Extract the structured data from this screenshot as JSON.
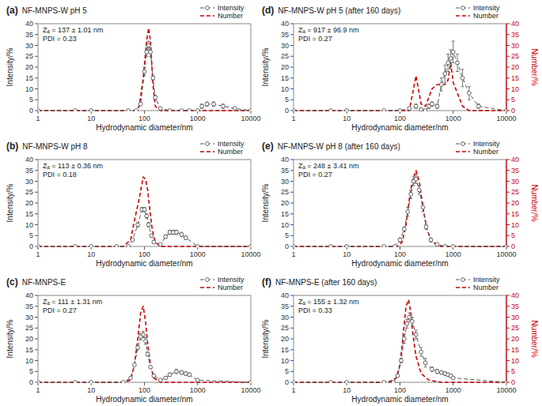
{
  "chart_data": [
    {
      "type": "line",
      "title": "NF-MNPS-W pH 5",
      "annotations": [
        "(a)",
        "Zₐ = 137 ± 1.01 nm",
        "PDI = 0.23"
      ],
      "xlabel": "Hydrodynamic diameter/nm",
      "ylabel": "Intensity/%",
      "log": "x",
      "grid": false,
      "legend": "top",
      "xlim": [
        1,
        10000
      ],
      "xticks": [
        1,
        10,
        100,
        1000,
        10000
      ],
      "ylim": [
        0,
        40
      ],
      "yticks": [
        0,
        5,
        10,
        15,
        20,
        25,
        30,
        35,
        40
      ],
      "series": [
        {
          "name": "Intensity",
          "color": "#555555",
          "marker": "circle",
          "line_style": "dashed",
          "x": [
            1,
            5,
            10,
            50,
            70,
            85,
            100,
            110,
            120,
            130,
            145,
            160,
            200,
            300,
            500,
            700,
            1000,
            1200,
            1500,
            2000,
            3000,
            5000,
            10000
          ],
          "values": [
            0,
            0,
            0,
            0,
            0,
            3,
            18,
            27,
            30,
            27,
            15,
            6,
            1,
            0,
            0,
            0,
            0,
            2,
            3,
            3,
            2,
            1,
            0
          ],
          "yerr": [
            0,
            0,
            0,
            0,
            0,
            0,
            2,
            2,
            2,
            2,
            1,
            1,
            0,
            0,
            0,
            0,
            0,
            1,
            1,
            1,
            1,
            0.5,
            0
          ]
        },
        {
          "name": "Number",
          "color": "#cc0000",
          "line_style": "dashed",
          "x": [
            1,
            5,
            10,
            50,
            70,
            80,
            95,
            110,
            120,
            130,
            145,
            160,
            200,
            300,
            500,
            1000,
            10000
          ],
          "values": [
            0,
            0,
            0,
            0,
            0,
            2,
            15,
            32,
            38,
            32,
            12,
            2,
            0,
            0,
            0,
            0,
            0
          ]
        }
      ]
    },
    {
      "type": "line",
      "title": "NF-MNPS-W pH 8",
      "annotations": [
        "(b)",
        "Zₐ = 113 ± 0.36 nm",
        "PDI = 0.18"
      ],
      "xlabel": "Hydrodynamic diameter/nm",
      "ylabel": "Intensity/%",
      "log": "x",
      "grid": false,
      "legend": "top",
      "xlim": [
        1,
        10000
      ],
      "xticks": [
        1,
        10,
        100,
        1000,
        10000
      ],
      "ylim": [
        0,
        40
      ],
      "yticks": [
        0,
        5,
        10,
        15,
        20,
        25,
        30,
        35,
        40
      ],
      "series": [
        {
          "name": "Intensity",
          "color": "#555555",
          "marker": "circle",
          "line_style": "dashed",
          "x": [
            1,
            5,
            10,
            30,
            50,
            60,
            75,
            90,
            100,
            110,
            120,
            135,
            150,
            200,
            250,
            300,
            350,
            400,
            500,
            600,
            1000,
            10000
          ],
          "values": [
            0,
            0,
            0,
            0,
            0,
            3,
            10,
            17,
            17,
            14,
            10,
            5,
            2,
            1,
            4.5,
            6.5,
            6.5,
            6.5,
            5.5,
            4,
            0,
            0
          ],
          "yerr": [
            0,
            0,
            0,
            0,
            0,
            0,
            1,
            1,
            1,
            1,
            1,
            0.5,
            0.5,
            0.3,
            0.8,
            1,
            1,
            1,
            1,
            0.8,
            0,
            0
          ]
        },
        {
          "name": "Number",
          "color": "#cc0000",
          "line_style": "dashed",
          "x": [
            1,
            5,
            10,
            40,
            55,
            65,
            80,
            95,
            105,
            115,
            125,
            140,
            160,
            200,
            500,
            1000,
            10000
          ],
          "values": [
            0,
            0,
            0,
            0,
            3,
            12,
            22,
            32,
            31,
            26,
            18,
            8,
            2,
            0,
            0,
            0,
            0
          ]
        }
      ]
    },
    {
      "type": "line",
      "title": "NF-MNPS-E",
      "annotations": [
        "(c)",
        "Zₐ = 111 ± 1.31 nm",
        "PDI = 0.27"
      ],
      "xlabel": "Hydrodynamic diameter/nm",
      "ylabel": "Intensity/%",
      "log": "x",
      "grid": false,
      "legend": "top",
      "xlim": [
        1,
        10000
      ],
      "xticks": [
        1,
        10,
        100,
        1000,
        10000
      ],
      "ylim": [
        0,
        40
      ],
      "yticks": [
        0,
        5,
        10,
        15,
        20,
        25,
        30,
        35,
        40
      ],
      "series": [
        {
          "name": "Intensity",
          "color": "#555555",
          "marker": "circle",
          "line_style": "dashed",
          "x": [
            1,
            5,
            10,
            40,
            55,
            65,
            75,
            85,
            95,
            105,
            115,
            130,
            150,
            200,
            250,
            300,
            400,
            500,
            600,
            700,
            1000,
            10000
          ],
          "values": [
            0,
            0,
            0,
            0,
            2,
            8,
            16,
            21,
            22,
            19,
            13,
            7,
            3,
            1,
            2,
            3.5,
            5,
            4.5,
            4,
            3.5,
            1,
            0
          ],
          "yerr": [
            0,
            0,
            0,
            0,
            0,
            0.5,
            1,
            1.5,
            1.5,
            1.5,
            1,
            0.5,
            0.5,
            0.3,
            0.5,
            0.8,
            1,
            0.8,
            0.8,
            0.8,
            0.3,
            0
          ]
        },
        {
          "name": "Number",
          "color": "#cc0000",
          "line_style": "dashed",
          "x": [
            1,
            5,
            10,
            40,
            55,
            65,
            75,
            85,
            95,
            105,
            115,
            130,
            150,
            200,
            500,
            1000,
            10000
          ],
          "values": [
            0,
            0,
            0,
            0,
            1,
            8,
            20,
            32,
            35,
            28,
            18,
            8,
            2,
            0,
            0,
            0,
            0
          ]
        }
      ]
    },
    {
      "type": "line",
      "title": "NF-MNPS-W pH 5 (after 160 days)",
      "annotations": [
        "(d)",
        "Zₐ = 917 ± 96.9 nm",
        "PDI = 0.27"
      ],
      "xlabel": "Hydrodynamic diameter/nm",
      "ylabel": "Intensity/%",
      "y2label": "Number/%",
      "log": "x",
      "grid": false,
      "legend": "top",
      "xlim": [
        1,
        10000
      ],
      "xticks": [
        1,
        10,
        100,
        1000,
        10000
      ],
      "ylim": [
        0,
        40
      ],
      "yticks": [
        0,
        5,
        10,
        15,
        20,
        25,
        30,
        35,
        40
      ],
      "y2lim": [
        0,
        40
      ],
      "y2ticks": [
        0,
        5,
        10,
        15,
        20,
        25,
        30,
        35,
        40
      ],
      "series": [
        {
          "name": "Intensity",
          "color": "#555555",
          "marker": "circle",
          "line_style": "dashed",
          "x": [
            1,
            5,
            10,
            50,
            100,
            150,
            200,
            250,
            300,
            350,
            400,
            500,
            600,
            700,
            800,
            900,
            1000,
            1200,
            1500,
            2000,
            3000,
            10000
          ],
          "values": [
            0,
            0,
            0,
            0,
            0,
            1,
            2,
            0.5,
            0,
            2,
            3,
            2,
            12,
            17,
            22,
            24,
            27,
            22,
            15,
            8,
            2,
            0
          ],
          "yerr": [
            0,
            0,
            0,
            0,
            0,
            0.5,
            1,
            0.5,
            0,
            1,
            1,
            1,
            3,
            4,
            4,
            4,
            5,
            4,
            4,
            3,
            1,
            0
          ]
        },
        {
          "name": "Number",
          "color": "#cc0000",
          "line_style": "dashed",
          "axis": "y2",
          "x": [
            1,
            5,
            10,
            50,
            100,
            150,
            200,
            250,
            300,
            400,
            500,
            600,
            700,
            800,
            900,
            1000,
            1200,
            1500,
            2000,
            3000,
            10000
          ],
          "values": [
            0,
            0,
            0,
            0,
            0,
            0,
            16,
            3,
            2,
            10,
            12,
            12,
            12,
            14,
            22,
            13,
            8,
            2,
            0,
            0,
            0
          ]
        }
      ]
    },
    {
      "type": "line",
      "title": "NF-MNPS-W pH 8 (after 160 days)",
      "annotations": [
        "(e)",
        "Zₐ = 248 ± 3.41 nm",
        "PDI = 0.27"
      ],
      "xlabel": "Hydrodynamic diameter/nm",
      "ylabel": "Intensity/%",
      "y2label": "Number/%",
      "log": "x",
      "grid": false,
      "legend": "top",
      "xlim": [
        1,
        10000
      ],
      "xticks": [
        1,
        10,
        100,
        1000,
        10000
      ],
      "ylim": [
        0,
        40
      ],
      "yticks": [
        0,
        5,
        10,
        15,
        20,
        25,
        30,
        35,
        40
      ],
      "y2lim": [
        0,
        40
      ],
      "y2ticks": [
        0,
        5,
        10,
        15,
        20,
        25,
        30,
        35,
        40
      ],
      "series": [
        {
          "name": "Intensity",
          "color": "#555555",
          "marker": "circle",
          "line_style": "dashed",
          "x": [
            1,
            5,
            10,
            50,
            80,
            100,
            120,
            140,
            160,
            180,
            200,
            230,
            270,
            310,
            380,
            500,
            700,
            1000,
            10000
          ],
          "values": [
            0,
            0,
            0,
            0,
            0,
            3,
            8,
            16,
            24,
            30,
            31,
            26,
            18,
            9,
            3,
            1,
            0,
            0,
            0
          ],
          "yerr": [
            0,
            0,
            0,
            0,
            0,
            1,
            1,
            2,
            2,
            2,
            2,
            2,
            2,
            1,
            1,
            0.5,
            0,
            0,
            0
          ]
        },
        {
          "name": "Number",
          "color": "#cc0000",
          "line_style": "dashed",
          "axis": "y2",
          "x": [
            1,
            5,
            10,
            50,
            90,
            110,
            130,
            150,
            170,
            200,
            230,
            270,
            320,
            400,
            600,
            1000,
            10000
          ],
          "values": [
            0,
            0,
            0,
            0,
            0,
            2,
            10,
            22,
            30,
            35,
            30,
            18,
            8,
            2,
            0,
            0,
            0
          ]
        }
      ]
    },
    {
      "type": "line",
      "title": "NF-MNPS-E (after 160 days)",
      "annotations": [
        "(f)",
        "Zₐ = 155 ± 1.32 nm",
        "PDI = 0.33"
      ],
      "xlabel": "Hydrodynamic diameter/nm",
      "ylabel": "Intensity/%",
      "y2label": "Number/%",
      "log": "x",
      "grid": false,
      "legend": "top",
      "xlim": [
        1,
        10000
      ],
      "xticks": [
        1,
        10,
        100,
        1000,
        10000
      ],
      "ylim": [
        0,
        40
      ],
      "yticks": [
        0,
        5,
        10,
        15,
        20,
        25,
        30,
        35,
        40
      ],
      "y2lim": [
        0,
        40
      ],
      "y2ticks": [
        0,
        5,
        10,
        15,
        20,
        25,
        30,
        35,
        40
      ],
      "series": [
        {
          "name": "Intensity",
          "color": "#555555",
          "marker": "circle",
          "line_style": "dashed",
          "x": [
            1,
            5,
            10,
            50,
            75,
            90,
            105,
            120,
            135,
            150,
            170,
            200,
            250,
            300,
            400,
            500,
            600,
            700,
            800,
            900,
            1000,
            10000
          ],
          "values": [
            0,
            0,
            0,
            0,
            0,
            3,
            10,
            20,
            27,
            30,
            28,
            22,
            14,
            9,
            6,
            5,
            4.5,
            4,
            3.5,
            3,
            2,
            0
          ],
          "yerr": [
            0,
            0,
            0,
            0,
            0,
            0.5,
            1,
            2,
            2,
            2,
            2,
            2,
            2,
            2,
            1,
            1,
            0.8,
            0.8,
            0.8,
            0.8,
            0.5,
            0
          ]
        },
        {
          "name": "Number",
          "color": "#cc0000",
          "line_style": "dashed",
          "axis": "y2",
          "x": [
            1,
            5,
            10,
            60,
            85,
            100,
            115,
            130,
            145,
            160,
            175,
            200,
            250,
            350,
            600,
            1000,
            10000
          ],
          "values": [
            0,
            0,
            0,
            0,
            2,
            8,
            22,
            35,
            38,
            32,
            22,
            12,
            4,
            1,
            0,
            0,
            0
          ]
        }
      ]
    }
  ]
}
